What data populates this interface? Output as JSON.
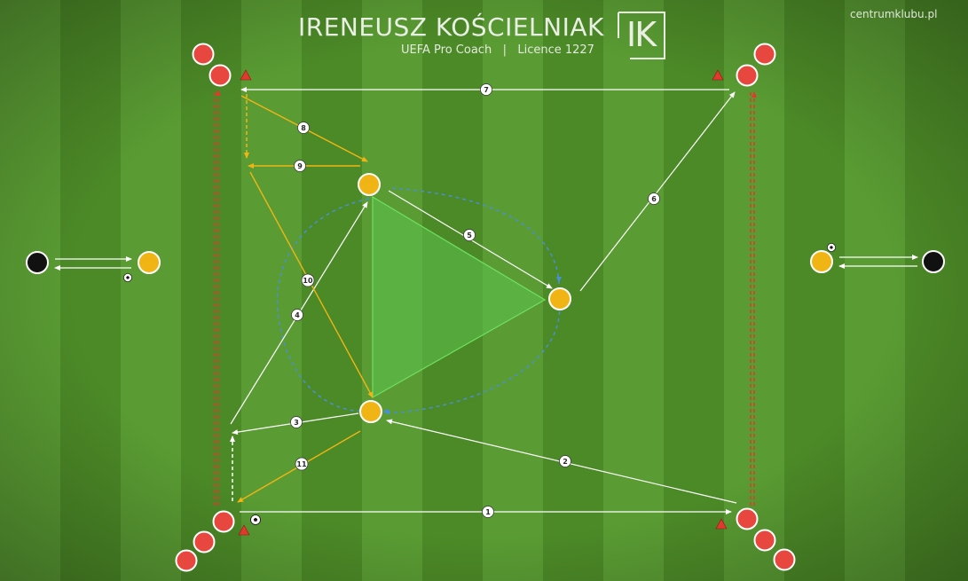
{
  "header": {
    "coach_name": "IRENEUSZ KOŚCIELNIAK",
    "subtitle": "UEFA Pro Coach   |   Licence 1227",
    "logo_letters": "IK",
    "site": "centrumklubu.pl"
  },
  "colors": {
    "grass_light": "#5a9c33",
    "grass_dark": "#4c8a27",
    "player_red": "#e8473f",
    "player_yellow": "#f0b514",
    "player_black": "#111111",
    "pass_white": "#ffffff",
    "run_yellow": "#f0b514",
    "cone_red": "#e03a2e",
    "dribble_blue": "#4a8fd4",
    "zone_green": "#59c24a"
  },
  "pass_labels": [
    "1",
    "2",
    "3",
    "4",
    "5",
    "6",
    "7",
    "8",
    "9",
    "10",
    "11"
  ],
  "icons": [
    "ball-icon",
    "cone-icon"
  ]
}
